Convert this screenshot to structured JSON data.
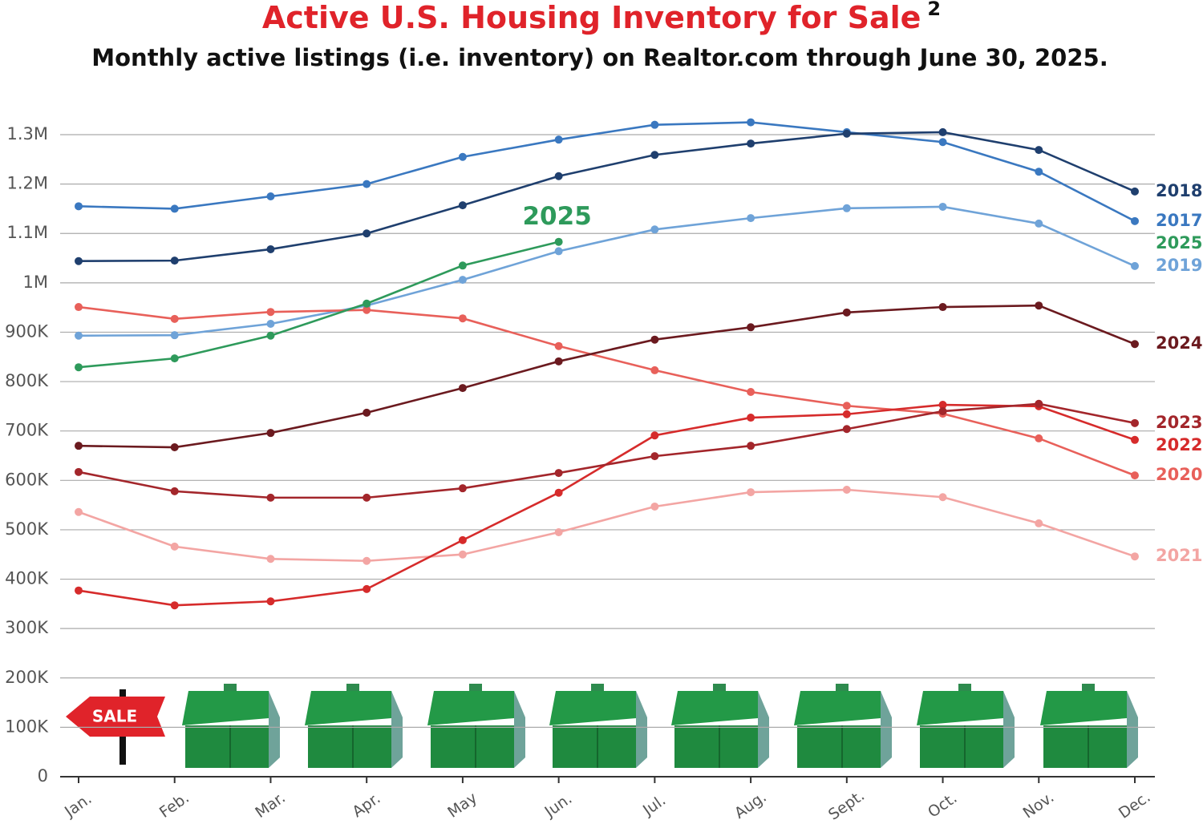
{
  "chart_data": {
    "type": "line",
    "title": "Active U.S. Housing Inventory for Sale",
    "title_superscript": "2",
    "subtitle": "Monthly active listings (i.e. inventory) on Realtor.com through June 30, 2025.",
    "categories": [
      "Jan.",
      "Feb.",
      "Mar.",
      "Apr.",
      "May",
      "Jun.",
      "Jul.",
      "Aug.",
      "Sept.",
      "Oct.",
      "Nov.",
      "Dec."
    ],
    "ylim": [
      0,
      1300000
    ],
    "yticks": [
      0,
      {
        "value": 100000,
        "label": "100K"
      },
      {
        "value": 200000,
        "label": "200K"
      },
      {
        "value": 300000,
        "label": "300K"
      },
      {
        "value": 400000,
        "label": "400K"
      },
      {
        "value": 500000,
        "label": "500K"
      },
      {
        "value": 600000,
        "label": "600K"
      },
      {
        "value": 700000,
        "label": "700K"
      },
      {
        "value": 800000,
        "label": "800K"
      },
      {
        "value": 900000,
        "label": "900K"
      },
      {
        "value": 1000000,
        "label": "1M"
      },
      {
        "value": 1100000,
        "label": "1.1M"
      },
      {
        "value": 1200000,
        "label": "1.2M"
      },
      {
        "value": 1300000,
        "label": "1.3M"
      }
    ],
    "grid": true,
    "series": [
      {
        "name": "2017",
        "color": "#3a78c0",
        "values": [
          1155000,
          1150000,
          1175000,
          1200000,
          1255000,
          1290000,
          1320000,
          1325000,
          1305000,
          1285000,
          1225000,
          1125000
        ]
      },
      {
        "name": "2018",
        "color": "#1f3f6e",
        "values": [
          1044000,
          1045000,
          1068000,
          1100000,
          1157000,
          1216000,
          1259000,
          1282000,
          1302000,
          1305000,
          1269000,
          1185000
        ]
      },
      {
        "name": "2019",
        "color": "#6fa3d8",
        "values": [
          893000,
          894000,
          917000,
          954000,
          1006000,
          1064000,
          1108000,
          1131000,
          1151000,
          1154000,
          1120000,
          1034000
        ]
      },
      {
        "name": "2020",
        "color": "#e8605a",
        "values": [
          951000,
          927000,
          941000,
          945000,
          928000,
          872000,
          823000,
          779000,
          751000,
          735000,
          685000,
          610000
        ]
      },
      {
        "name": "2021",
        "color": "#f3a5a3",
        "values": [
          536000,
          466000,
          441000,
          437000,
          450000,
          495000,
          547000,
          576000,
          581000,
          566000,
          513000,
          446000
        ]
      },
      {
        "name": "2022",
        "color": "#d62b2b",
        "values": [
          377000,
          347000,
          355000,
          380000,
          479000,
          575000,
          691000,
          727000,
          734000,
          753000,
          750000,
          682000
        ]
      },
      {
        "name": "2023",
        "color": "#a3262b",
        "values": [
          617000,
          578000,
          565000,
          565000,
          584000,
          615000,
          649000,
          670000,
          704000,
          740000,
          755000,
          716000
        ]
      },
      {
        "name": "2024",
        "color": "#6b1a1f",
        "values": [
          670000,
          667000,
          696000,
          737000,
          787000,
          841000,
          885000,
          910000,
          940000,
          951000,
          954000,
          876000
        ]
      },
      {
        "name": "2025",
        "color": "#2e9a5b",
        "values": [
          829000,
          847000,
          893000,
          958000,
          1035000,
          1083000,
          null,
          null,
          null,
          null,
          null,
          null
        ]
      }
    ]
  }
}
